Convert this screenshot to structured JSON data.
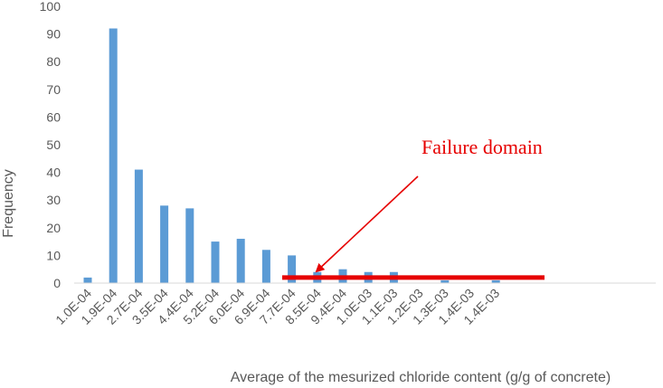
{
  "chart_data": {
    "type": "bar",
    "title": "",
    "xlabel": "Average of the mesurized chloride content (g/g of concrete)",
    "ylabel": "Frequency",
    "ylim": [
      0,
      100
    ],
    "yticks": [
      0,
      10,
      20,
      30,
      40,
      50,
      60,
      70,
      80,
      90,
      100
    ],
    "grid": false,
    "legend": "none",
    "bar_color": "#5b9bd5",
    "categories": [
      "1.0E-04",
      "1.9E-04",
      "2.7E-04",
      "3.5E-04",
      "4.4E-04",
      "5.2E-04",
      "6.0E-04",
      "6.9E-04",
      "7.7E-04",
      "8.5E-04",
      "9.4E-04",
      "1.0E-03",
      "1.1E-03",
      "1.2E-03",
      "1.3E-03",
      "1.4E-03",
      "1.4E-03"
    ],
    "values": [
      2,
      92,
      41,
      28,
      27,
      15,
      16,
      12,
      10,
      4,
      5,
      4,
      4,
      0,
      1,
      0,
      1
    ],
    "annotation": {
      "text": "Failure domain",
      "color": "#e60000",
      "threshold_value": 2
    }
  }
}
